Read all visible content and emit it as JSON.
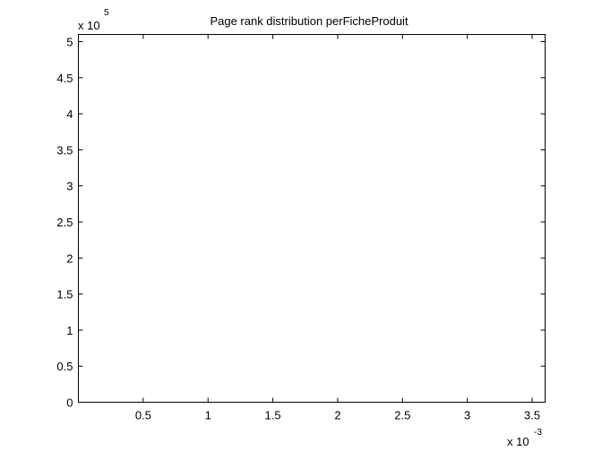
{
  "chart_data": {
    "type": "bar",
    "title": "Page rank distribution perFicheProduit",
    "xlabel": "",
    "ylabel": "",
    "xlim": [
      0,
      0.0036
    ],
    "ylim": [
      0,
      510000
    ],
    "x_ticks": [
      0.0005,
      0.001,
      0.0015,
      0.002,
      0.0025,
      0.003,
      0.0035
    ],
    "x_tick_labels": [
      "0.5",
      "1",
      "1.5",
      "2",
      "2.5",
      "3",
      "3.5"
    ],
    "y_ticks": [
      0,
      50000,
      100000,
      150000,
      200000,
      250000,
      300000,
      350000,
      400000,
      450000,
      500000
    ],
    "y_tick_labels": [
      "0",
      "0.5",
      "1",
      "1.5",
      "2",
      "2.5",
      "3",
      "3.5",
      "4",
      "4.5",
      "5"
    ],
    "x_multiplier": {
      "base": "x 10",
      "exponent": "-3"
    },
    "y_multiplier": {
      "base": "x 10",
      "exponent": "5"
    },
    "series": [],
    "grid": false,
    "legend": "none"
  }
}
